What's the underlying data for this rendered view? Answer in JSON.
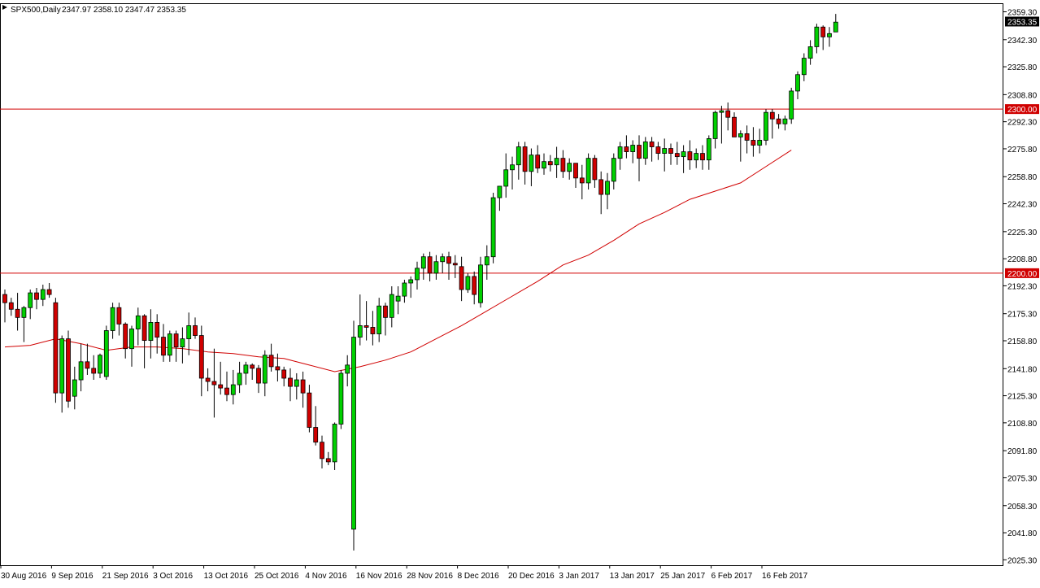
{
  "header": {
    "symbol": "SPX500,Daily",
    "ohlc": "2347.97 2358.10 2347.47 2353.35"
  },
  "colors": {
    "bull": "#00d000",
    "bear": "#d00000",
    "wick": "#000000",
    "ma": "#d00000",
    "hline": "#d00000",
    "price_label_bg": "#000000",
    "level_label_bg": "#d00000"
  },
  "chart_data": {
    "type": "candlestick",
    "y_axis_ticks": [
      "2359.30",
      "2342.30",
      "2325.80",
      "2308.80",
      "2292.30",
      "2275.80",
      "2258.80",
      "2242.30",
      "2225.30",
      "2208.80",
      "2192.30",
      "2175.30",
      "2158.80",
      "2141.80",
      "2125.30",
      "2108.80",
      "2091.80",
      "2075.30",
      "2058.30",
      "2041.80",
      "2025.30"
    ],
    "x_axis_labels": [
      "30 Aug 2016",
      "9 Sep 2016",
      "21 Sep 2016",
      "3 Oct 2016",
      "13 Oct 2016",
      "25 Oct 2016",
      "4 Nov 2016",
      "16 Nov 2016",
      "28 Nov 2016",
      "8 Dec 2016",
      "20 Dec 2016",
      "3 Jan 2017",
      "13 Jan 2017",
      "25 Jan 2017",
      "6 Feb 2017",
      "16 Feb 2017"
    ],
    "x_axis_label_bar_index": [
      0,
      8,
      16,
      24,
      32,
      40,
      48,
      56,
      64,
      72,
      80,
      88,
      96,
      104,
      112,
      120
    ],
    "ylim": [
      2022,
      2364
    ],
    "current_price": "2353.35",
    "horizontal_levels": [
      {
        "value": 2300,
        "label": "2300.00"
      },
      {
        "value": 2200,
        "label": "2200.00"
      }
    ],
    "candles": [
      [
        2187,
        2190,
        2170,
        2182
      ],
      [
        2182,
        2185,
        2174,
        2178
      ],
      [
        2178,
        2188,
        2165,
        2173
      ],
      [
        2173,
        2180,
        2158,
        2179
      ],
      [
        2179,
        2190,
        2172,
        2188
      ],
      [
        2188,
        2191,
        2178,
        2184
      ],
      [
        2184,
        2193,
        2180,
        2190
      ],
      [
        2190,
        2194,
        2185,
        2187
      ],
      [
        2182,
        2185,
        2121,
        2127
      ],
      [
        2127,
        2162,
        2115,
        2160
      ],
      [
        2160,
        2165,
        2118,
        2122
      ],
      [
        2125,
        2143,
        2117,
        2135
      ],
      [
        2135,
        2157,
        2128,
        2146
      ],
      [
        2146,
        2157,
        2138,
        2142
      ],
      [
        2142,
        2150,
        2135,
        2139
      ],
      [
        2139,
        2151,
        2136,
        2150
      ],
      [
        2137,
        2168,
        2135,
        2165
      ],
      [
        2165,
        2182,
        2160,
        2179
      ],
      [
        2179,
        2182,
        2162,
        2169
      ],
      [
        2169,
        2170,
        2148,
        2154
      ],
      [
        2154,
        2168,
        2143,
        2166
      ],
      [
        2166,
        2179,
        2156,
        2174
      ],
      [
        2174,
        2175,
        2142,
        2159
      ],
      [
        2159,
        2178,
        2148,
        2170
      ],
      [
        2170,
        2175,
        2151,
        2161
      ],
      [
        2161,
        2169,
        2146,
        2150
      ],
      [
        2150,
        2165,
        2146,
        2163
      ],
      [
        2163,
        2165,
        2146,
        2155
      ],
      [
        2155,
        2167,
        2145,
        2160
      ],
      [
        2160,
        2176,
        2150,
        2168
      ],
      [
        2168,
        2173,
        2160,
        2162
      ],
      [
        2162,
        2168,
        2125,
        2136
      ],
      [
        2136,
        2142,
        2128,
        2134
      ],
      [
        2134,
        2154,
        2112,
        2132
      ],
      [
        2132,
        2146,
        2126,
        2130
      ],
      [
        2130,
        2140,
        2122,
        2126
      ],
      [
        2126,
        2141,
        2120,
        2132
      ],
      [
        2132,
        2146,
        2127,
        2139
      ],
      [
        2139,
        2146,
        2132,
        2144
      ],
      [
        2144,
        2145,
        2135,
        2142
      ],
      [
        2142,
        2144,
        2127,
        2133
      ],
      [
        2133,
        2153,
        2125,
        2150
      ],
      [
        2150,
        2157,
        2140,
        2143
      ],
      [
        2143,
        2151,
        2134,
        2141
      ],
      [
        2141,
        2143,
        2131,
        2136
      ],
      [
        2136,
        2142,
        2122,
        2131
      ],
      [
        2131,
        2139,
        2123,
        2135
      ],
      [
        2135,
        2140,
        2118,
        2127
      ],
      [
        2127,
        2132,
        2103,
        2106
      ],
      [
        2106,
        2119,
        2095,
        2097
      ],
      [
        2097,
        2101,
        2081,
        2087
      ],
      [
        2087,
        2091,
        2083,
        2085
      ],
      [
        2085,
        2109,
        2080,
        2108
      ],
      [
        2108,
        2141,
        2105,
        2139
      ],
      [
        2139,
        2150,
        2131,
        2144
      ],
      [
        2044,
        2171,
        2031,
        2161
      ],
      [
        2161,
        2187,
        2156,
        2168
      ],
      [
        2168,
        2183,
        2159,
        2167
      ],
      [
        2167,
        2177,
        2156,
        2163
      ],
      [
        2163,
        2185,
        2158,
        2180
      ],
      [
        2180,
        2182,
        2162,
        2173
      ],
      [
        2173,
        2192,
        2167,
        2187
      ],
      [
        2183,
        2192,
        2175,
        2186
      ],
      [
        2186,
        2196,
        2182,
        2194
      ],
      [
        2194,
        2198,
        2185,
        2196
      ],
      [
        2196,
        2207,
        2190,
        2203
      ],
      [
        2203,
        2212,
        2196,
        2210
      ],
      [
        2210,
        2213,
        2195,
        2200
      ],
      [
        2200,
        2211,
        2196,
        2207
      ],
      [
        2207,
        2212,
        2200,
        2210
      ],
      [
        2210,
        2213,
        2196,
        2206
      ],
      [
        2206,
        2211,
        2197,
        2205
      ],
      [
        2204,
        2210,
        2183,
        2190
      ],
      [
        2190,
        2200,
        2188,
        2198
      ],
      [
        2198,
        2201,
        2181,
        2187
      ],
      [
        2182,
        2210,
        2179,
        2205
      ],
      [
        2205,
        2217,
        2196,
        2210
      ],
      [
        2210,
        2249,
        2206,
        2246
      ],
      [
        2246,
        2253,
        2238,
        2253
      ],
      [
        2253,
        2273,
        2246,
        2263
      ],
      [
        2263,
        2271,
        2251,
        2266
      ],
      [
        2266,
        2280,
        2257,
        2277
      ],
      [
        2277,
        2280,
        2254,
        2262
      ],
      [
        2262,
        2276,
        2253,
        2272
      ],
      [
        2272,
        2278,
        2261,
        2264
      ],
      [
        2264,
        2273,
        2260,
        2268
      ],
      [
        2268,
        2272,
        2262,
        2266
      ],
      [
        2266,
        2277,
        2258,
        2270
      ],
      [
        2270,
        2275,
        2258,
        2262
      ],
      [
        2262,
        2270,
        2257,
        2267
      ],
      [
        2267,
        2267,
        2252,
        2258
      ],
      [
        2258,
        2266,
        2245,
        2255
      ],
      [
        2255,
        2273,
        2251,
        2270
      ],
      [
        2270,
        2272,
        2252,
        2257
      ],
      [
        2257,
        2262,
        2236,
        2248
      ],
      [
        2248,
        2261,
        2239,
        2256
      ],
      [
        2256,
        2273,
        2251,
        2270
      ],
      [
        2270,
        2280,
        2263,
        2277
      ],
      [
        2277,
        2284,
        2270,
        2274
      ],
      [
        2274,
        2281,
        2267,
        2278
      ],
      [
        2278,
        2284,
        2256,
        2270
      ],
      [
        2270,
        2283,
        2266,
        2280
      ],
      [
        2280,
        2283,
        2268,
        2277
      ],
      [
        2277,
        2280,
        2269,
        2273
      ],
      [
        2273,
        2282,
        2262,
        2276
      ],
      [
        2276,
        2279,
        2266,
        2273
      ],
      [
        2273,
        2280,
        2266,
        2271
      ],
      [
        2271,
        2278,
        2261,
        2274
      ],
      [
        2274,
        2281,
        2263,
        2269
      ],
      [
        2269,
        2276,
        2264,
        2273
      ],
      [
        2273,
        2278,
        2263,
        2269
      ],
      [
        2269,
        2284,
        2263,
        2282
      ],
      [
        2282,
        2299,
        2276,
        2298
      ],
      [
        2298,
        2302,
        2279,
        2299
      ],
      [
        2299,
        2304,
        2287,
        2295
      ],
      [
        2295,
        2298,
        2284,
        2283
      ],
      [
        2283,
        2287,
        2268,
        2285
      ],
      [
        2285,
        2290,
        2273,
        2281
      ],
      [
        2281,
        2289,
        2271,
        2278
      ],
      [
        2278,
        2288,
        2273,
        2281
      ],
      [
        2281,
        2300,
        2278,
        2298
      ],
      [
        2298,
        2300,
        2282,
        2294
      ],
      [
        2294,
        2297,
        2288,
        2291
      ],
      [
        2291,
        2296,
        2287,
        2294
      ],
      [
        2294,
        2313,
        2291,
        2311
      ],
      [
        2311,
        2323,
        2306,
        2321
      ],
      [
        2321,
        2334,
        2317,
        2331
      ],
      [
        2331,
        2342,
        2327,
        2338
      ],
      [
        2338,
        2352,
        2334,
        2350
      ],
      [
        2350,
        2351,
        2336,
        2344
      ],
      [
        2344,
        2350,
        2338,
        2346
      ],
      [
        2347,
        2358,
        2347,
        2353
      ]
    ],
    "moving_average_period_label": "",
    "moving_average": [
      [
        0,
        2155
      ],
      [
        4,
        2156
      ],
      [
        8,
        2160
      ],
      [
        12,
        2157
      ],
      [
        16,
        2153
      ],
      [
        20,
        2155
      ],
      [
        24,
        2155
      ],
      [
        28,
        2154
      ],
      [
        32,
        2152
      ],
      [
        36,
        2151
      ],
      [
        40,
        2149
      ],
      [
        44,
        2148
      ],
      [
        48,
        2144
      ],
      [
        52,
        2140
      ],
      [
        56,
        2143
      ],
      [
        60,
        2147
      ],
      [
        64,
        2152
      ],
      [
        68,
        2160
      ],
      [
        72,
        2168
      ],
      [
        76,
        2177
      ],
      [
        80,
        2186
      ],
      [
        84,
        2195
      ],
      [
        88,
        2205
      ],
      [
        92,
        2211
      ],
      [
        96,
        2220
      ],
      [
        100,
        2230
      ],
      [
        104,
        2237
      ],
      [
        108,
        2245
      ],
      [
        112,
        2250
      ],
      [
        116,
        2255
      ],
      [
        120,
        2265
      ],
      [
        124,
        2275
      ]
    ]
  }
}
